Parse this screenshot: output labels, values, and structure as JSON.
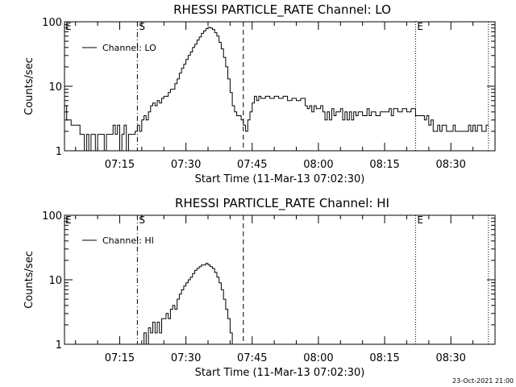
{
  "footer": {
    "timestamp": "23-Oct-2021 21:00"
  },
  "chart_data": [
    {
      "type": "line",
      "title": "RHESSI PARTICLE_RATE Channel: LO",
      "xlabel": "Start Time (11-Mar-13 07:02:30)",
      "ylabel": "Counts/sec",
      "yscale": "log",
      "ylim": [
        1,
        100
      ],
      "y_tick_values": [
        1,
        10,
        100
      ],
      "y_tick_labels": [
        "1",
        "10",
        "100"
      ],
      "xlim": [
        "07:02:30",
        "08:40:00"
      ],
      "x_tick_values": [
        "07:15",
        "07:30",
        "07:45",
        "08:00",
        "08:15",
        "08:30"
      ],
      "x_tick_labels": [
        "07:15",
        "07:30",
        "07:45",
        "08:00",
        "08:15",
        "08:30"
      ],
      "legend": {
        "position": "top-left",
        "entries": [
          "Channel: LO"
        ]
      },
      "markers": [
        {
          "label": "S",
          "x": "07:19:00",
          "style": "dash-dot"
        },
        {
          "label": "",
          "x": "07:43:00",
          "style": "dashed"
        },
        {
          "label": "E",
          "x": "08:22:00",
          "style": "dotted"
        },
        {
          "label": "",
          "x": "08:38:30",
          "style": "dotted"
        }
      ],
      "series": [
        {
          "values": [
            [
              "07:02:30",
              5
            ],
            [
              "07:03:00",
              3
            ],
            [
              "07:04:00",
              2.5
            ],
            [
              "07:05:00",
              2.5
            ],
            [
              "07:06:00",
              1.8
            ],
            [
              "07:06:30",
              1.8
            ],
            [
              "07:07:00",
              1.0
            ],
            [
              "07:07:30",
              1.8
            ],
            [
              "07:08:00",
              1.0
            ],
            [
              "07:08:30",
              1.8
            ],
            [
              "07:09:00",
              1.8
            ],
            [
              "07:09:30",
              1.0
            ],
            [
              "07:10:00",
              1.8
            ],
            [
              "07:11:00",
              1.8
            ],
            [
              "07:11:30",
              1.0
            ],
            [
              "07:12:00",
              1.8
            ],
            [
              "07:13:00",
              1.8
            ],
            [
              "07:13:30",
              2.5
            ],
            [
              "07:14:00",
              1.8
            ],
            [
              "07:14:30",
              2.5
            ],
            [
              "07:15:00",
              1.0
            ],
            [
              "07:15:30",
              1.8
            ],
            [
              "07:16:00",
              2.5
            ],
            [
              "07:16:30",
              1.0
            ],
            [
              "07:17:00",
              1.8
            ],
            [
              "07:17:30",
              1.8
            ],
            [
              "07:18:00",
              1.8
            ],
            [
              "07:18:30",
              2.0
            ],
            [
              "07:19:00",
              2.5
            ],
            [
              "07:19:30",
              2.0
            ],
            [
              "07:20:00",
              3.0
            ],
            [
              "07:20:30",
              3.5
            ],
            [
              "07:21:00",
              3.0
            ],
            [
              "07:21:30",
              4.0
            ],
            [
              "07:22:00",
              5.0
            ],
            [
              "07:22:30",
              5.5
            ],
            [
              "07:23:00",
              5.0
            ],
            [
              "07:23:30",
              6.0
            ],
            [
              "07:24:00",
              5.5
            ],
            [
              "07:24:30",
              6.5
            ],
            [
              "07:25:00",
              7.0
            ],
            [
              "07:25:30",
              7.0
            ],
            [
              "07:26:00",
              8.0
            ],
            [
              "07:26:30",
              9.0
            ],
            [
              "07:27:00",
              9.0
            ],
            [
              "07:27:30",
              11
            ],
            [
              "07:28:00",
              13
            ],
            [
              "07:28:30",
              16
            ],
            [
              "07:29:00",
              19
            ],
            [
              "07:29:30",
              22
            ],
            [
              "07:30:00",
              26
            ],
            [
              "07:30:30",
              30
            ],
            [
              "07:31:00",
              34
            ],
            [
              "07:31:30",
              40
            ],
            [
              "07:32:00",
              45
            ],
            [
              "07:32:30",
              52
            ],
            [
              "07:33:00",
              58
            ],
            [
              "07:33:30",
              66
            ],
            [
              "07:34:00",
              72
            ],
            [
              "07:34:30",
              78
            ],
            [
              "07:35:00",
              82
            ],
            [
              "07:35:30",
              80
            ],
            [
              "07:36:00",
              76
            ],
            [
              "07:36:30",
              68
            ],
            [
              "07:37:00",
              60
            ],
            [
              "07:37:30",
              48
            ],
            [
              "07:38:00",
              38
            ],
            [
              "07:38:30",
              28
            ],
            [
              "07:39:00",
              20
            ],
            [
              "07:39:30",
              13
            ],
            [
              "07:40:00",
              8
            ],
            [
              "07:40:30",
              5
            ],
            [
              "07:41:00",
              4
            ],
            [
              "07:41:30",
              3.5
            ],
            [
              "07:42:00",
              3.5
            ],
            [
              "07:42:30",
              3.0
            ],
            [
              "07:43:00",
              2.5
            ],
            [
              "07:43:30",
              2.0
            ],
            [
              "07:44:00",
              3.0
            ],
            [
              "07:44:30",
              4.0
            ],
            [
              "07:45:00",
              5.5
            ],
            [
              "07:45:30",
              7.0
            ],
            [
              "07:46:00",
              6.0
            ],
            [
              "07:46:30",
              7.0
            ],
            [
              "07:47:00",
              6.5
            ],
            [
              "07:48:00",
              7.0
            ],
            [
              "07:49:00",
              6.5
            ],
            [
              "07:50:00",
              7.0
            ],
            [
              "07:51:00",
              6.5
            ],
            [
              "07:52:00",
              7.0
            ],
            [
              "07:53:00",
              6.0
            ],
            [
              "07:54:00",
              6.5
            ],
            [
              "07:55:00",
              6.0
            ],
            [
              "07:56:00",
              6.5
            ],
            [
              "07:57:00",
              5.0
            ],
            [
              "07:57:30",
              4.5
            ],
            [
              "07:58:00",
              5.0
            ],
            [
              "07:58:30",
              4.0
            ],
            [
              "07:59:00",
              5.0
            ],
            [
              "07:59:30",
              4.5
            ],
            [
              "08:00:00",
              4.5
            ],
            [
              "08:00:30",
              5.0
            ],
            [
              "08:01:00",
              4.0
            ],
            [
              "08:01:30",
              3.0
            ],
            [
              "08:02:00",
              4.0
            ],
            [
              "08:02:30",
              3.0
            ],
            [
              "08:03:00",
              4.5
            ],
            [
              "08:03:30",
              3.5
            ],
            [
              "08:04:00",
              4.0
            ],
            [
              "08:05:00",
              4.5
            ],
            [
              "08:05:30",
              3.0
            ],
            [
              "08:06:00",
              4.0
            ],
            [
              "08:06:30",
              3.0
            ],
            [
              "08:07:00",
              4.0
            ],
            [
              "08:07:30",
              3.0
            ],
            [
              "08:08:00",
              4.0
            ],
            [
              "08:08:30",
              3.5
            ],
            [
              "08:09:00",
              4.0
            ],
            [
              "08:10:00",
              3.5
            ],
            [
              "08:11:00",
              4.5
            ],
            [
              "08:11:30",
              3.5
            ],
            [
              "08:12:00",
              4.0
            ],
            [
              "08:13:00",
              3.5
            ],
            [
              "08:14:00",
              4.0
            ],
            [
              "08:15:00",
              4.0
            ],
            [
              "08:16:00",
              4.5
            ],
            [
              "08:16:30",
              3.5
            ],
            [
              "08:17:00",
              4.5
            ],
            [
              "08:18:00",
              4.0
            ],
            [
              "08:19:00",
              4.5
            ],
            [
              "08:20:00",
              4.0
            ],
            [
              "08:21:00",
              4.5
            ],
            [
              "08:22:00",
              3.5
            ],
            [
              "08:23:00",
              3.5
            ],
            [
              "08:24:00",
              3.0
            ],
            [
              "08:24:30",
              3.5
            ],
            [
              "08:25:00",
              2.5
            ],
            [
              "08:25:30",
              3.0
            ],
            [
              "08:26:00",
              2.0
            ],
            [
              "08:27:00",
              2.5
            ],
            [
              "08:27:30",
              2.0
            ],
            [
              "08:28:00",
              2.5
            ],
            [
              "08:29:00",
              2.0
            ],
            [
              "08:30:00",
              2.0
            ],
            [
              "08:30:30",
              2.5
            ],
            [
              "08:31:00",
              2.0
            ],
            [
              "08:32:00",
              2.0
            ],
            [
              "08:33:00",
              2.0
            ],
            [
              "08:34:00",
              2.5
            ],
            [
              "08:34:30",
              2.0
            ],
            [
              "08:35:00",
              2.5
            ],
            [
              "08:35:30",
              2.0
            ],
            [
              "08:36:00",
              2.5
            ],
            [
              "08:37:00",
              2.0
            ],
            [
              "08:38:00",
              2.5
            ],
            [
              "08:38:30",
              2.5
            ]
          ]
        }
      ]
    },
    {
      "type": "line",
      "title": "RHESSI PARTICLE_RATE Channel: HI",
      "xlabel": "Start Time (11-Mar-13 07:02:30)",
      "ylabel": "Counts/sec",
      "yscale": "log",
      "ylim": [
        1,
        100
      ],
      "y_tick_values": [
        1,
        10,
        100
      ],
      "y_tick_labels": [
        "1",
        "10",
        "100"
      ],
      "xlim": [
        "07:02:30",
        "08:40:00"
      ],
      "x_tick_values": [
        "07:15",
        "07:30",
        "07:45",
        "08:00",
        "08:15",
        "08:30"
      ],
      "x_tick_labels": [
        "07:15",
        "07:30",
        "07:45",
        "08:00",
        "08:15",
        "08:30"
      ],
      "legend": {
        "position": "top-left",
        "entries": [
          "Channel: HI"
        ]
      },
      "markers": [
        {
          "label": "S",
          "x": "07:19:00",
          "style": "dash-dot"
        },
        {
          "label": "",
          "x": "07:43:00",
          "style": "dashed"
        },
        {
          "label": "E",
          "x": "08:22:00",
          "style": "dotted"
        },
        {
          "label": "",
          "x": "08:38:30",
          "style": "dotted"
        }
      ],
      "series": [
        {
          "values": [
            [
              "07:20:00",
              1.0
            ],
            [
              "07:20:30",
              1.5
            ],
            [
              "07:21:00",
              1.0
            ],
            [
              "07:21:30",
              1.8
            ],
            [
              "07:22:00",
              1.5
            ],
            [
              "07:22:30",
              2.2
            ],
            [
              "07:23:00",
              1.5
            ],
            [
              "07:23:30",
              2.2
            ],
            [
              "07:24:00",
              1.5
            ],
            [
              "07:24:30",
              2.5
            ],
            [
              "07:25:00",
              2.5
            ],
            [
              "07:25:30",
              3.0
            ],
            [
              "07:26:00",
              2.5
            ],
            [
              "07:26:30",
              3.5
            ],
            [
              "07:27:00",
              4.0
            ],
            [
              "07:27:30",
              3.5
            ],
            [
              "07:28:00",
              5.0
            ],
            [
              "07:28:30",
              6.0
            ],
            [
              "07:29:00",
              7.0
            ],
            [
              "07:29:30",
              8.0
            ],
            [
              "07:30:00",
              9.0
            ],
            [
              "07:30:30",
              10
            ],
            [
              "07:31:00",
              11
            ],
            [
              "07:31:30",
              12.5
            ],
            [
              "07:32:00",
              14
            ],
            [
              "07:32:30",
              15
            ],
            [
              "07:33:00",
              16
            ],
            [
              "07:33:30",
              17
            ],
            [
              "07:34:00",
              17
            ],
            [
              "07:34:30",
              18
            ],
            [
              "07:35:00",
              17
            ],
            [
              "07:35:30",
              16
            ],
            [
              "07:36:00",
              15
            ],
            [
              "07:36:30",
              13
            ],
            [
              "07:37:00",
              11
            ],
            [
              "07:37:30",
              9
            ],
            [
              "07:38:00",
              7
            ],
            [
              "07:38:30",
              5
            ],
            [
              "07:39:00",
              3.5
            ],
            [
              "07:39:30",
              2.5
            ],
            [
              "07:40:00",
              1.5
            ],
            [
              "07:40:30",
              1.0
            ]
          ]
        }
      ]
    }
  ]
}
